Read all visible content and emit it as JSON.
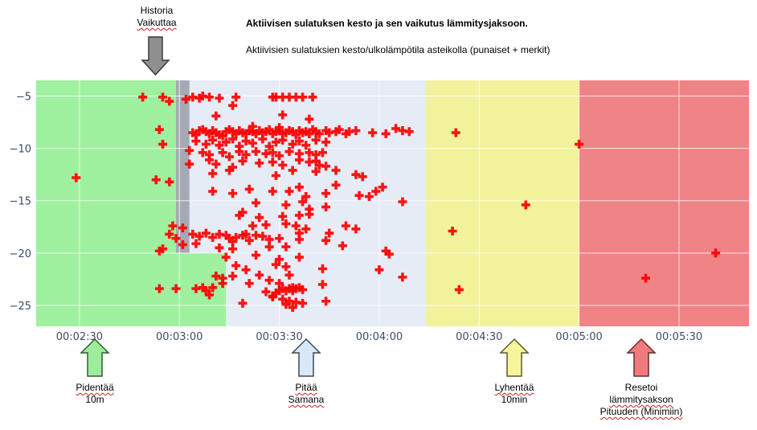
{
  "header": {
    "title": "Aktiivisen sulatuksen kesto ja sen vaikutus lämmitysjaksoon.",
    "subtitle": "Aktiivisien sulatuksien kesto/ulkolämpötila asteikolla (punaiset + merkit)",
    "history_label_1": "Historia",
    "history_label_2": "Vaikuttaa"
  },
  "annotations": [
    {
      "line1": "Pidentää",
      "line2": "10m",
      "line3": "",
      "color": "#9dec9d"
    },
    {
      "line1": "Pitää",
      "line2": "Samana",
      "line3": "",
      "color": "#d9e8f6"
    },
    {
      "line1": "Lyhentää",
      "line2": "10min",
      "line3": "",
      "color": "#f6f59b"
    },
    {
      "line1": "Resetoi",
      "line2": "lämmitysakson",
      "line3": "Pituuden (Minimiin)",
      "color": "#ef7b7f"
    }
  ],
  "chart_data": {
    "type": "scatter",
    "x_unit": "mm:ss",
    "xlim": [
      "02:17",
      "05:51"
    ],
    "ylim": [
      -27,
      -3.5
    ],
    "x_ticks": [
      "00:02:30",
      "00:03:00",
      "00:03:30",
      "00:04:00",
      "00:04:30",
      "00:05:00",
      "00:05:30"
    ],
    "y_ticks": [
      "−5",
      "−10",
      "−15",
      "−20",
      "−25"
    ],
    "y_tick_values": [
      -5,
      -10,
      -15,
      -20,
      -25
    ],
    "grid": true,
    "zones": [
      {
        "x_from": "02:17",
        "x_to": "03:00",
        "y_from": -27,
        "y_to": -3.5,
        "color": "#9ff09f"
      },
      {
        "x_from": "03:00",
        "x_to": "03:14",
        "y_from": -27,
        "y_to": -20,
        "color": "#9ff09f"
      },
      {
        "x_from": "03:14",
        "x_to": "04:14",
        "y_from": -27,
        "y_to": -3.5,
        "color": "#e5ecf6"
      },
      {
        "x_from": "03:00",
        "x_to": "03:14",
        "y_from": -20,
        "y_to": -3.5,
        "color": "#e5ecf6"
      },
      {
        "x_from": "04:14",
        "x_to": "05:00",
        "y_from": -27,
        "y_to": -3.5,
        "color": "#f2f29b"
      },
      {
        "x_from": "05:00",
        "x_to": "05:51",
        "y_from": -27,
        "y_to": -3.5,
        "color": "#f08385"
      },
      {
        "x_from": "02:59",
        "x_to": "03:03",
        "y_from": -20,
        "y_to": -3.5,
        "color": "#a5a9b3"
      }
    ],
    "series": [
      {
        "marker": "plus",
        "color": "#ff0000",
        "points": [
          [
            "02:29",
            -12.8
          ],
          [
            "02:49",
            -5.1
          ],
          [
            "02:55",
            -5.1
          ],
          [
            "02:57",
            -5.5
          ],
          [
            "02:54",
            -8.2
          ],
          [
            "02:55",
            -9.6
          ],
          [
            "02:53",
            -13
          ],
          [
            "02:57",
            -13.2
          ],
          [
            "02:57",
            -18.2
          ],
          [
            "02:58",
            -17.4
          ],
          [
            "02:54",
            -19.8
          ],
          [
            "02:55",
            -19.6
          ],
          [
            "02:59",
            -18.6
          ],
          [
            "02:54",
            -23.4
          ],
          [
            "02:59",
            -23.4
          ],
          [
            "03:05",
            -23.4
          ],
          [
            "03:07",
            -23.3
          ],
          [
            "03:08",
            -23.6
          ],
          [
            "03:09",
            -24
          ],
          [
            "03:10",
            -23.3
          ],
          [
            "03:11",
            -22.2
          ],
          [
            "03:13",
            -22.9
          ],
          [
            "03:13",
            -22.4
          ],
          [
            "03:02",
            -5.3
          ],
          [
            "03:04",
            -5.1
          ],
          [
            "03:06",
            -5.2
          ],
          [
            "03:07",
            -5.0
          ],
          [
            "03:09",
            -5.1
          ],
          [
            "03:12",
            -5.2
          ],
          [
            "03:17",
            -5.1
          ],
          [
            "03:28",
            -5.1
          ],
          [
            "03:29",
            -5.1
          ],
          [
            "03:31",
            -5.1
          ],
          [
            "03:33",
            -5.1
          ],
          [
            "03:35",
            -5.1
          ],
          [
            "03:37",
            -5.1
          ],
          [
            "03:40",
            -5.1
          ],
          [
            "03:16",
            -5.9
          ],
          [
            "03:11",
            -6.9
          ],
          [
            "03:31",
            -6.8
          ],
          [
            "03:39",
            -7.2
          ],
          [
            "03:22",
            -7.9
          ],
          [
            "03:30",
            -8.0
          ],
          [
            "03:04",
            -8.5
          ],
          [
            "03:05",
            -8.7
          ],
          [
            "03:06",
            -8.3
          ],
          [
            "03:07",
            -8.2
          ],
          [
            "03:08",
            -8.4
          ],
          [
            "03:09",
            -8.6
          ],
          [
            "03:10",
            -8.3
          ],
          [
            "03:11",
            -8.5
          ],
          [
            "03:12",
            -8.7
          ],
          [
            "03:13",
            -8.8
          ],
          [
            "03:14",
            -8.4
          ],
          [
            "03:15",
            -8.2
          ],
          [
            "03:16",
            -8.4
          ],
          [
            "03:17",
            -8.6
          ],
          [
            "03:18",
            -8.3
          ],
          [
            "03:19",
            -8.5
          ],
          [
            "03:20",
            -8.6
          ],
          [
            "03:21",
            -8.3
          ],
          [
            "03:22",
            -8.4
          ],
          [
            "03:23",
            -8.6
          ],
          [
            "03:24",
            -8.3
          ],
          [
            "03:25",
            -8.5
          ],
          [
            "03:26",
            -8.4
          ],
          [
            "03:27",
            -8.2
          ],
          [
            "03:28",
            -8.6
          ],
          [
            "03:29",
            -8.4
          ],
          [
            "03:30",
            -8.3
          ],
          [
            "03:31",
            -8.6
          ],
          [
            "03:32",
            -8.5
          ],
          [
            "03:33",
            -8.3
          ],
          [
            "03:34",
            -8.4
          ],
          [
            "03:35",
            -8.7
          ],
          [
            "03:36",
            -8.3
          ],
          [
            "03:37",
            -8.5
          ],
          [
            "03:38",
            -8.4
          ],
          [
            "03:39",
            -8.6
          ],
          [
            "03:40",
            -8.2
          ],
          [
            "03:41",
            -8.4
          ],
          [
            "03:42",
            -8.6
          ],
          [
            "03:44",
            -8.3
          ],
          [
            "03:45",
            -8.5
          ],
          [
            "03:47",
            -8.4
          ],
          [
            "03:48",
            -8.2
          ],
          [
            "03:50",
            -8.6
          ],
          [
            "03:51",
            -8.4
          ],
          [
            "03:53",
            -8.3
          ],
          [
            "03:58",
            -8.5
          ],
          [
            "04:02",
            -8.6
          ],
          [
            "04:05",
            -8.1
          ],
          [
            "04:07",
            -8.3
          ],
          [
            "04:09",
            -8.4
          ],
          [
            "03:05",
            -9.3
          ],
          [
            "03:08",
            -9.6
          ],
          [
            "03:10",
            -9.2
          ],
          [
            "03:12",
            -9.7
          ],
          [
            "03:14",
            -9.4
          ],
          [
            "03:16",
            -9.1
          ],
          [
            "03:18",
            -9.8
          ],
          [
            "03:20",
            -9.3
          ],
          [
            "03:22",
            -9.5
          ],
          [
            "03:25",
            -9.1
          ],
          [
            "03:27",
            -9.8
          ],
          [
            "03:29",
            -9.4
          ],
          [
            "03:31",
            -9.2
          ],
          [
            "03:34",
            -9.6
          ],
          [
            "03:36",
            -9.3
          ],
          [
            "03:38",
            -9.7
          ],
          [
            "03:41",
            -9.2
          ],
          [
            "03:44",
            -9.4
          ],
          [
            "03:03",
            -10.2
          ],
          [
            "03:07",
            -10.4
          ],
          [
            "03:09",
            -10.6
          ],
          [
            "03:13",
            -10.4
          ],
          [
            "03:15",
            -10.8
          ],
          [
            "03:18",
            -10.3
          ],
          [
            "03:20",
            -10.6
          ],
          [
            "03:23",
            -10.3
          ],
          [
            "03:26",
            -10.5
          ],
          [
            "03:28",
            -10.4
          ],
          [
            "03:30",
            -10.7
          ],
          [
            "03:33",
            -10.3
          ],
          [
            "03:36",
            -10.5
          ],
          [
            "03:39",
            -10.4
          ],
          [
            "03:41",
            -10.6
          ],
          [
            "03:43",
            -10.4
          ],
          [
            "03:03",
            -11.5
          ],
          [
            "03:09",
            -11.1
          ],
          [
            "03:11",
            -11.5
          ],
          [
            "03:16",
            -11.8
          ],
          [
            "03:19",
            -11.2
          ],
          [
            "03:24",
            -11.4
          ],
          [
            "03:28",
            -11.3
          ],
          [
            "03:31",
            -11.6
          ],
          [
            "03:36",
            -11.1
          ],
          [
            "03:39",
            -11.3
          ],
          [
            "03:41",
            -11.2
          ],
          [
            "03:42",
            -11.6
          ],
          [
            "03:44",
            -11.7
          ],
          [
            "03:10",
            -12.4
          ],
          [
            "03:15",
            -12.1
          ],
          [
            "03:29",
            -12.6
          ],
          [
            "03:34",
            -12.1
          ],
          [
            "03:41",
            -12.2
          ],
          [
            "03:47",
            -12.1
          ],
          [
            "03:53",
            -12.5
          ],
          [
            "03:55",
            -12.7
          ],
          [
            "03:36",
            -13.7
          ],
          [
            "03:47",
            -13.5
          ],
          [
            "04:01",
            -13.7
          ],
          [
            "03:21",
            -13.9
          ],
          [
            "03:59",
            -14.1
          ],
          [
            "03:10",
            -14.1
          ],
          [
            "03:16",
            -14.3
          ],
          [
            "03:28",
            -14.1
          ],
          [
            "03:33",
            -14.1
          ],
          [
            "03:38",
            -14.6
          ],
          [
            "03:44",
            -14.3
          ],
          [
            "03:54",
            -14.5
          ],
          [
            "03:57",
            -14.6
          ],
          [
            "03:23",
            -15.2
          ],
          [
            "03:32",
            -15.4
          ],
          [
            "03:37",
            -15.1
          ],
          [
            "03:39",
            -15.8
          ],
          [
            "04:07",
            -15.1
          ],
          [
            "03:44",
            -15.6
          ],
          [
            "03:19",
            -16.1
          ],
          [
            "03:18",
            -16.4
          ],
          [
            "03:24",
            -16.6
          ],
          [
            "03:31",
            -16.5
          ],
          [
            "03:36",
            -16.4
          ],
          [
            "03:39",
            -16.3
          ],
          [
            "03:35",
            -17.4
          ],
          [
            "03:22",
            -17.4
          ],
          [
            "03:26",
            -17.3
          ],
          [
            "03:32",
            -17.2
          ],
          [
            "03:38",
            -17.7
          ],
          [
            "03:50",
            -17.4
          ],
          [
            "03:45",
            -18.1
          ],
          [
            "03:36",
            -18.1
          ],
          [
            "03:01",
            -17.6
          ],
          [
            "03:04",
            -18.2
          ],
          [
            "03:06",
            -18.4
          ],
          [
            "03:08",
            -18.1
          ],
          [
            "03:10",
            -18.5
          ],
          [
            "03:12",
            -18.2
          ],
          [
            "03:14",
            -18.3
          ],
          [
            "03:15",
            -18.6
          ],
          [
            "03:16",
            -18.9
          ],
          [
            "03:17",
            -18.5
          ],
          [
            "03:19",
            -18.3
          ],
          [
            "03:20",
            -18.2
          ],
          [
            "03:21",
            -18.8
          ],
          [
            "03:23",
            -18.3
          ],
          [
            "03:25",
            -18.4
          ],
          [
            "03:27",
            -18.7
          ],
          [
            "03:30",
            -18.6
          ],
          [
            "03:36",
            -18.7
          ],
          [
            "03:44",
            -18.8
          ],
          [
            "03:53",
            -17.7
          ],
          [
            "03:49",
            -19.3
          ],
          [
            "03:01",
            -19.2
          ],
          [
            "03:05",
            -19.1
          ],
          [
            "03:16",
            -19.6
          ],
          [
            "03:27",
            -19.4
          ],
          [
            "03:32",
            -19.4
          ],
          [
            "03:12",
            -19.5
          ],
          [
            "03:14",
            -20.4
          ],
          [
            "03:23",
            -20.2
          ],
          [
            "03:36",
            -20.4
          ],
          [
            "04:02",
            -19.8
          ],
          [
            "04:03",
            -20.1
          ],
          [
            "03:17",
            -21.2
          ],
          [
            "03:30",
            -20.6
          ],
          [
            "03:29",
            -21.1
          ],
          [
            "03:20",
            -21.6
          ],
          [
            "03:32",
            -21.3
          ],
          [
            "03:43",
            -21.5
          ],
          [
            "04:00",
            -21.6
          ],
          [
            "03:16",
            -22.2
          ],
          [
            "03:24",
            -22.1
          ],
          [
            "03:27",
            -22.6
          ],
          [
            "03:30",
            -22.9
          ],
          [
            "03:33",
            -22.1
          ],
          [
            "03:34",
            -23.3
          ],
          [
            "03:26",
            -23.7
          ],
          [
            "03:28",
            -24.1
          ],
          [
            "03:29",
            -23.8
          ],
          [
            "03:30",
            -23.6
          ],
          [
            "03:31",
            -23.4
          ],
          [
            "03:32",
            -23.6
          ],
          [
            "03:33",
            -23.4
          ],
          [
            "03:34",
            -23.6
          ],
          [
            "03:35",
            -23.4
          ],
          [
            "03:36",
            -23.3
          ],
          [
            "03:37",
            -23.5
          ],
          [
            "03:43",
            -23.0
          ],
          [
            "03:28",
            -24.2
          ],
          [
            "03:31",
            -24.4
          ],
          [
            "03:33",
            -24.6
          ],
          [
            "03:35",
            -24.7
          ],
          [
            "03:37",
            -24.8
          ],
          [
            "03:34",
            -25.2
          ],
          [
            "03:19",
            -24.8
          ],
          [
            "03:32",
            -24.9
          ],
          [
            "03:44",
            -24.6
          ],
          [
            "03:21",
            -22.9
          ],
          [
            "04:07",
            -22.3
          ],
          [
            "04:23",
            -8.5
          ],
          [
            "04:22",
            -17.9
          ],
          [
            "04:24",
            -23.5
          ],
          [
            "04:44",
            -15.4
          ],
          [
            "05:00",
            -9.6
          ],
          [
            "05:20",
            -22.4
          ],
          [
            "05:41",
            -20.0
          ]
        ]
      }
    ]
  }
}
